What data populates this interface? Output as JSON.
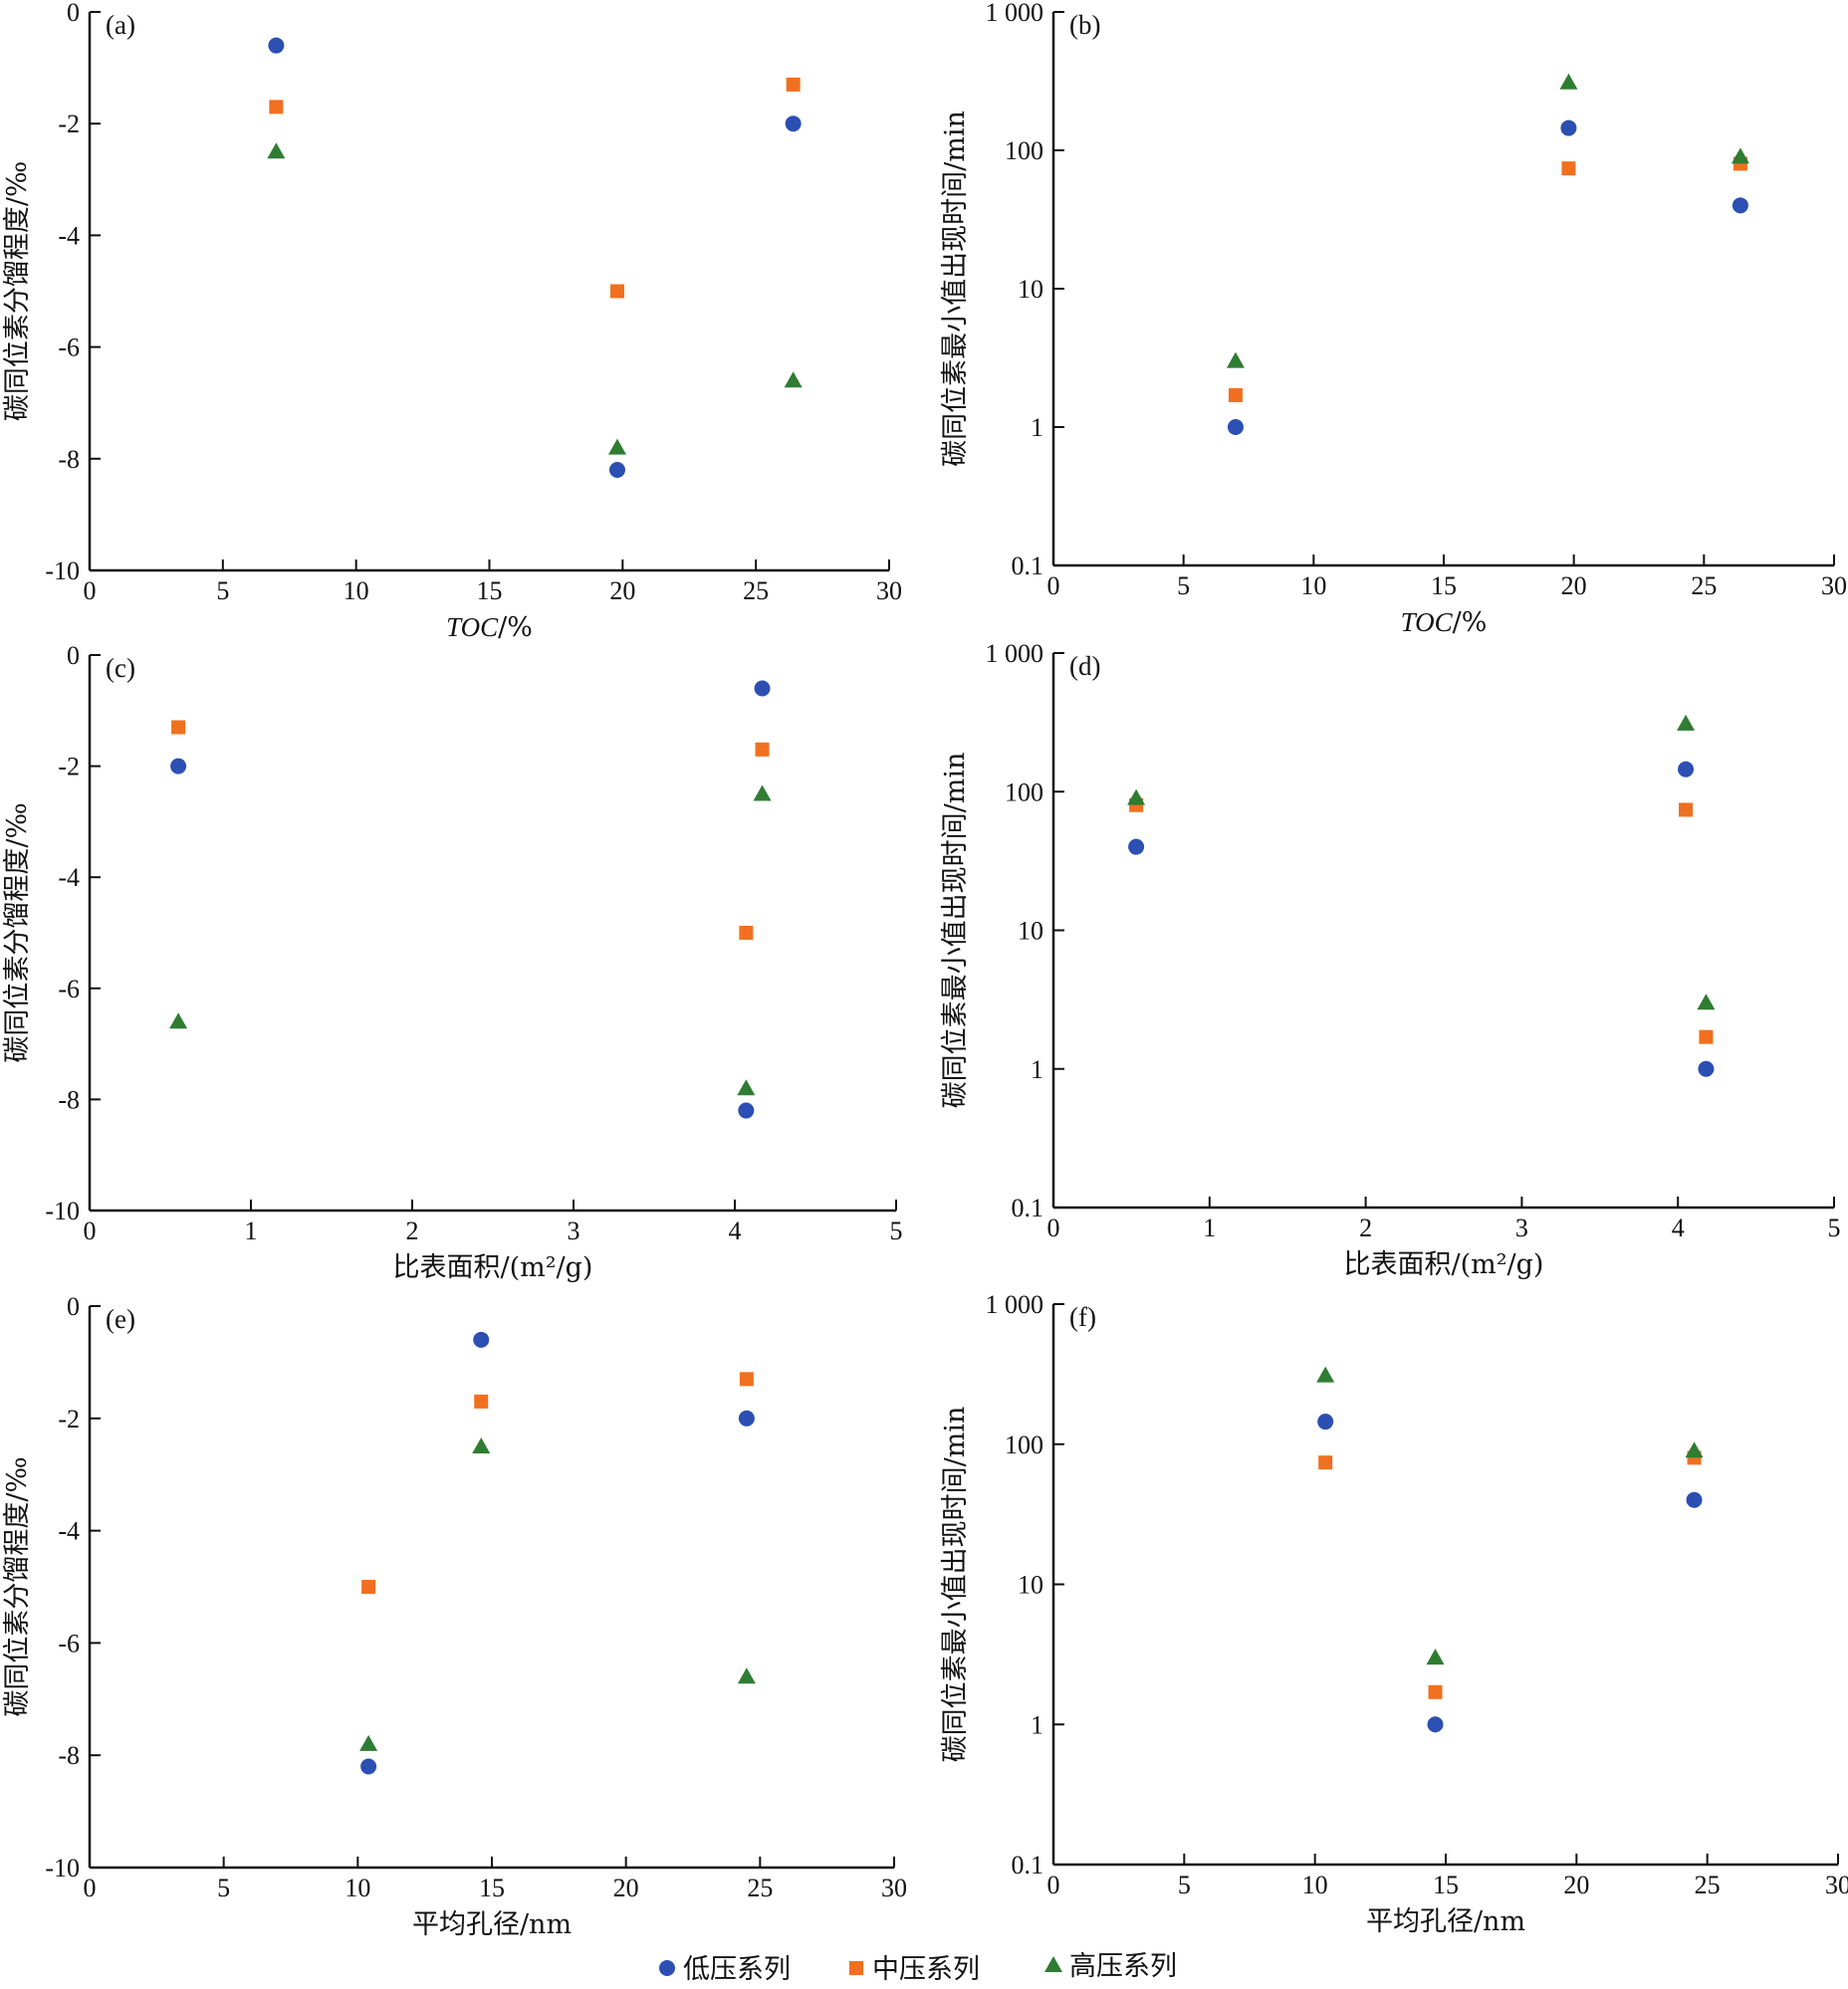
{
  "colors": {
    "low": "#2b4fb3",
    "mid": "#f07020",
    "high": "#2e7d32",
    "axis": "#111111"
  },
  "legend": [
    {
      "name": "低压系列",
      "marker": "circle",
      "color_key": "low"
    },
    {
      "name": "中压系列",
      "marker": "square",
      "color_key": "mid"
    },
    {
      "name": "高压系列",
      "marker": "triangle",
      "color_key": "high"
    }
  ],
  "chart_data": [
    {
      "type": "scatter",
      "label": "(a)",
      "xlabel": "TOC/%",
      "xlabel_italic_part": "TOC",
      "ylabel": "碳同位素分馏程度/‰",
      "xlim": [
        0,
        30
      ],
      "ylim": [
        -10,
        0
      ],
      "yscale": "linear",
      "xticks": [
        "0",
        "5",
        "10",
        "15",
        "20",
        "25",
        "30"
      ],
      "yticks": [
        "0",
        "-2",
        "-4",
        "-6",
        "-8",
        "-10"
      ],
      "series": [
        {
          "name": "低压系列",
          "x": [
            7.0,
            19.8,
            26.4
          ],
          "y": [
            -0.6,
            -8.2,
            -2.0
          ]
        },
        {
          "name": "中压系列",
          "x": [
            7.0,
            19.8,
            26.4
          ],
          "y": [
            -1.7,
            -5.0,
            -1.3
          ]
        },
        {
          "name": "高压系列",
          "x": [
            7.0,
            19.8,
            26.4
          ],
          "y": [
            -2.5,
            -7.8,
            -6.6
          ]
        }
      ]
    },
    {
      "type": "scatter",
      "label": "(b)",
      "xlabel": "TOC/%",
      "xlabel_italic_part": "TOC",
      "ylabel": "碳同位素最小值出现时间/min",
      "xlim": [
        0,
        30
      ],
      "ylim": [
        0.1,
        1000
      ],
      "yscale": "log",
      "xticks": [
        "0",
        "5",
        "10",
        "15",
        "20",
        "25",
        "30"
      ],
      "yticks": [
        "1 000",
        "100",
        "10",
        "1",
        "0.1"
      ],
      "series": [
        {
          "name": "低压系列",
          "x": [
            7.0,
            19.8,
            26.4
          ],
          "y": [
            1.0,
            145,
            40
          ]
        },
        {
          "name": "中压系列",
          "x": [
            7.0,
            19.8,
            26.4
          ],
          "y": [
            1.7,
            74,
            80
          ]
        },
        {
          "name": "高压系列",
          "x": [
            7.0,
            19.8,
            26.4
          ],
          "y": [
            3.0,
            310,
            90
          ]
        }
      ]
    },
    {
      "type": "scatter",
      "label": "(c)",
      "xlabel": "比表面积/(m²/g)",
      "ylabel": "碳同位素分馏程度/‰",
      "xlim": [
        0,
        5
      ],
      "ylim": [
        -10,
        0
      ],
      "yscale": "linear",
      "xticks": [
        "0",
        "1",
        "2",
        "3",
        "4",
        "5"
      ],
      "yticks": [
        "0",
        "-2",
        "-4",
        "-6",
        "-8",
        "-10"
      ],
      "series": [
        {
          "name": "低压系列",
          "x": [
            0.55,
            4.07,
            4.17
          ],
          "y": [
            -2.0,
            -8.2,
            -0.6
          ]
        },
        {
          "name": "中压系列",
          "x": [
            0.55,
            4.07,
            4.17
          ],
          "y": [
            -1.3,
            -5.0,
            -1.7
          ]
        },
        {
          "name": "高压系列",
          "x": [
            0.55,
            4.07,
            4.17
          ],
          "y": [
            -6.6,
            -7.8,
            -2.5
          ]
        }
      ]
    },
    {
      "type": "scatter",
      "label": "(d)",
      "xlabel": "比表面积/(m²/g)",
      "ylabel": "碳同位素最小值出现时间/min",
      "xlim": [
        0,
        5
      ],
      "ylim": [
        0.1,
        1000
      ],
      "yscale": "log",
      "xticks": [
        "0",
        "1",
        "2",
        "3",
        "4",
        "5"
      ],
      "yticks": [
        "1 000",
        "100",
        "10",
        "1",
        "0.1"
      ],
      "series": [
        {
          "name": "低压系列",
          "x": [
            0.53,
            4.05,
            4.18
          ],
          "y": [
            40,
            145,
            1.0
          ]
        },
        {
          "name": "中压系列",
          "x": [
            0.53,
            4.05,
            4.18
          ],
          "y": [
            80,
            74,
            1.7
          ]
        },
        {
          "name": "高压系列",
          "x": [
            0.53,
            4.05,
            4.18
          ],
          "y": [
            90,
            310,
            3.0
          ]
        }
      ]
    },
    {
      "type": "scatter",
      "label": "(e)",
      "xlabel": "平均孔径/nm",
      "ylabel": "碳同位素分馏程度/‰",
      "xlim": [
        0,
        30
      ],
      "ylim": [
        -10,
        0
      ],
      "yscale": "linear",
      "xticks": [
        "0",
        "5",
        "10",
        "15",
        "20",
        "25",
        "30"
      ],
      "yticks": [
        "0",
        "-2",
        "-4",
        "-6",
        "-8",
        "-10"
      ],
      "series": [
        {
          "name": "低压系列",
          "x": [
            10.4,
            14.6,
            24.5
          ],
          "y": [
            -8.2,
            -0.6,
            -2.0
          ]
        },
        {
          "name": "中压系列",
          "x": [
            10.4,
            14.6,
            24.5
          ],
          "y": [
            -5.0,
            -1.7,
            -1.3
          ]
        },
        {
          "name": "高压系列",
          "x": [
            10.4,
            14.6,
            24.5
          ],
          "y": [
            -7.8,
            -2.5,
            -6.6
          ]
        }
      ]
    },
    {
      "type": "scatter",
      "label": "(f)",
      "xlabel": "平均孔径/nm",
      "ylabel": "碳同位素最小值出现时间/min",
      "xlim": [
        0,
        30
      ],
      "ylim": [
        0.1,
        1000
      ],
      "yscale": "log",
      "xticks": [
        "0",
        "5",
        "10",
        "15",
        "20",
        "25",
        "30"
      ],
      "yticks": [
        "1 000",
        "100",
        "10",
        "1",
        "0.1"
      ],
      "series": [
        {
          "name": "低压系列",
          "x": [
            10.4,
            14.6,
            24.5
          ],
          "y": [
            145,
            1.0,
            40
          ]
        },
        {
          "name": "中压系列",
          "x": [
            10.4,
            14.6,
            24.5
          ],
          "y": [
            74,
            1.7,
            80
          ]
        },
        {
          "name": "高压系列",
          "x": [
            10.4,
            14.6,
            24.5
          ],
          "y": [
            310,
            3.0,
            90
          ]
        }
      ]
    }
  ]
}
